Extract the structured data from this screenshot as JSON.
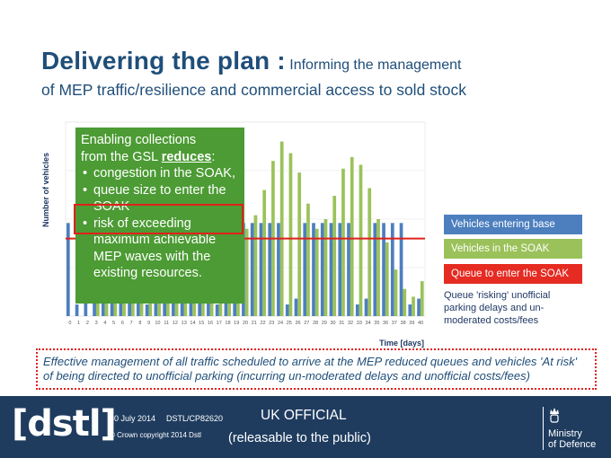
{
  "slide": {
    "title_main": "Delivering the plan :",
    "title_sub": "Informing the management",
    "subtitle": "of MEP traffic/resilience and commercial access to sold stock"
  },
  "green_box": {
    "line1": "Enabling collections",
    "line2_prefix": "from the GSL ",
    "line2_bold": "reduces",
    "line2_suffix": ":",
    "bullets": [
      "congestion in the SOAK,",
      "queue size to enter the SOAK",
      "risk of exceeding maximum achievable MEP waves with the existing resources."
    ]
  },
  "legend": {
    "entering": "Vehicles entering  base",
    "in_soak": "Vehicles in the SOAK",
    "queue": "Queue to enter the SOAK"
  },
  "note": "Queue 'risking' unofficial parking delays and un-moderated costs/fees",
  "effective_text": "Effective management of all traffic scheduled to arrive at the MEP reduced queues and vehicles 'At risk' of being directed to unofficial parking (incurring un-moderated delays and unofficial costs/fees)",
  "footer": {
    "logo": "[dstl]",
    "date": "30 July 2014",
    "ref": "DSTL/CP82620",
    "copyright": "© Crown copyright 2014 Dstl",
    "classification": "UK OFFICIAL",
    "releasable": "(releasable to the public)",
    "ministry_line1": "Ministry",
    "ministry_line2": "of Defence"
  },
  "colors": {
    "title": "#1f4e79",
    "green_box": "#4c9b34",
    "entering": "#4d7fbf",
    "soak": "#9bc25a",
    "queue_line": "#e0201c",
    "footer": "#1f3c5f"
  },
  "chart_data": {
    "type": "bar",
    "xlabel": "Time [days]",
    "ylabel": "Number of vehicles",
    "categories": [
      "0",
      "1",
      "2",
      "3",
      "4",
      "5",
      "6",
      "7",
      "8",
      "9",
      "10",
      "11",
      "12",
      "13",
      "14",
      "15",
      "16",
      "17",
      "18",
      "19",
      "20",
      "21",
      "22",
      "23",
      "24",
      "25",
      "26",
      "27",
      "28",
      "29",
      "30",
      "31",
      "32",
      "33",
      "34",
      "35",
      "36",
      "37",
      "38",
      "39",
      "40"
    ],
    "ylim": [
      0,
      100
    ],
    "queue_threshold": 40,
    "series": [
      {
        "name": "Vehicles entering  base",
        "values": [
          48,
          6,
          9,
          48,
          48,
          48,
          48,
          48,
          48,
          6,
          9,
          48,
          48,
          48,
          48,
          48,
          48,
          6,
          9,
          48,
          48,
          48,
          48,
          48,
          48,
          6,
          9,
          48,
          48,
          48,
          48,
          48,
          48,
          6,
          9,
          48,
          48,
          48,
          48,
          6,
          9
        ]
      },
      {
        "name": "Vehicles in the SOAK",
        "values": [
          0,
          0,
          0,
          48,
          60,
          70,
          78,
          84,
          80,
          72,
          62,
          45,
          55,
          68,
          80,
          88,
          92,
          84,
          70,
          55,
          45,
          52,
          65,
          80,
          90,
          84,
          74,
          58,
          45,
          50,
          62,
          76,
          82,
          78,
          66,
          50,
          38,
          24,
          14,
          10,
          18
        ]
      }
    ]
  }
}
